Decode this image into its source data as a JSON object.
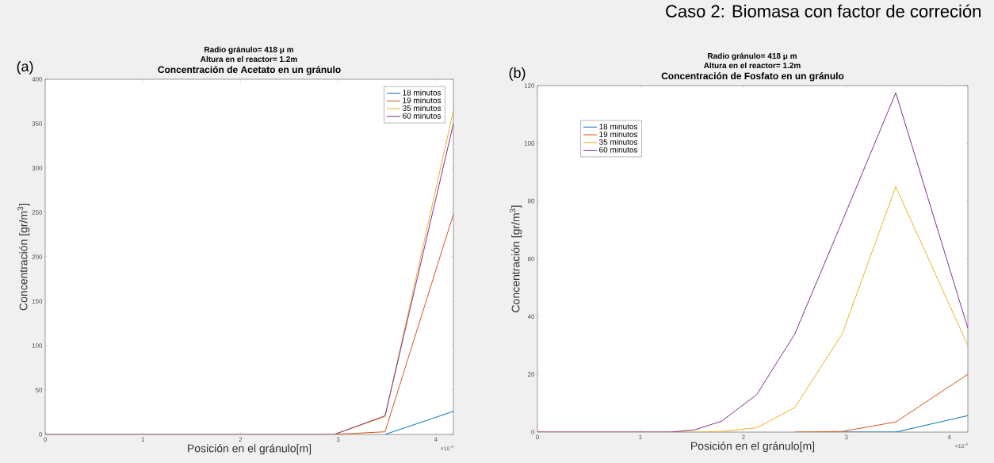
{
  "chart_data": [
    {
      "type": "line",
      "title": "Concentración de Acetato en un gránulo",
      "subtitle": "Radio gránulo= 418 μ m",
      "xlabel": "Posición en el gránulo[m]",
      "ylabel": "Concentración [gr/m$^{3}$]",
      "annotations": [
        "(a)",
        "Altura en el reactor= 1.2m",
        "×10$^{-4}$"
      ],
      "x": [
        0,
        2.96,
        3.48,
        4.18
      ],
      "series": [
        {
          "name": "18 minutos",
          "color": "#0072bd",
          "values": [
            null,
            null,
            0,
            26
          ]
        },
        {
          "name": "19 minutos",
          "color": "#d95319",
          "values": [
            null,
            0,
            3,
            248
          ]
        },
        {
          "name": "35 minutos",
          "color": "#edb120",
          "values": [
            0,
            0,
            20,
            365
          ]
        },
        {
          "name": "60 minutos",
          "color": "#7e2f8e",
          "values": [
            0,
            0,
            21,
            350
          ]
        }
      ],
      "xlim": [
        0,
        4.18
      ],
      "ylim": [
        0,
        400
      ],
      "xticks": [
        0,
        1,
        2,
        3,
        4
      ],
      "yticks": [
        0,
        50,
        100,
        150,
        200,
        250,
        300,
        350,
        400
      ],
      "legend": "top right",
      "grid": false
    },
    {
      "type": "line",
      "title": "Concentración de Fosfato en un gránulo",
      "subtitle": "Radio gránulo= 418 μ m",
      "xlabel": "Posición en el gránulo[m]",
      "ylabel": "Concentración [gr/m$^{3}$]",
      "annotations": [
        "(b)",
        "Altura en el reactor= 1.2m",
        "×10$^{-4}$",
        "Caso 2: Biomasa con factor de correción"
      ],
      "x": [
        0,
        1.3,
        1.53,
        1.79,
        2.13,
        2.5,
        2.96,
        3.48,
        4.18
      ],
      "series": [
        {
          "name": "18 minutos",
          "color": "#0072bd",
          "values": [
            null,
            null,
            null,
            null,
            null,
            null,
            0,
            0,
            5.7
          ]
        },
        {
          "name": "19 minutos",
          "color": "#d95319",
          "values": [
            null,
            null,
            null,
            null,
            null,
            0,
            0.2,
            3.5,
            20
          ]
        },
        {
          "name": "35 minutos",
          "color": "#edb120",
          "values": [
            0,
            0,
            0,
            0.2,
            1.5,
            8.5,
            34,
            85,
            30
          ]
        },
        {
          "name": "60 minutos",
          "color": "#7e2f8e",
          "values": [
            0,
            0,
            0.8,
            3.8,
            13,
            34,
            73,
            117.5,
            36
          ]
        }
      ],
      "xlim": [
        0,
        4.18
      ],
      "ylim": [
        0,
        120
      ],
      "xticks": [
        0,
        1,
        2,
        3,
        4
      ],
      "yticks": [
        0,
        20,
        40,
        60,
        80,
        100,
        120
      ],
      "legend": "top left",
      "grid": false
    }
  ]
}
